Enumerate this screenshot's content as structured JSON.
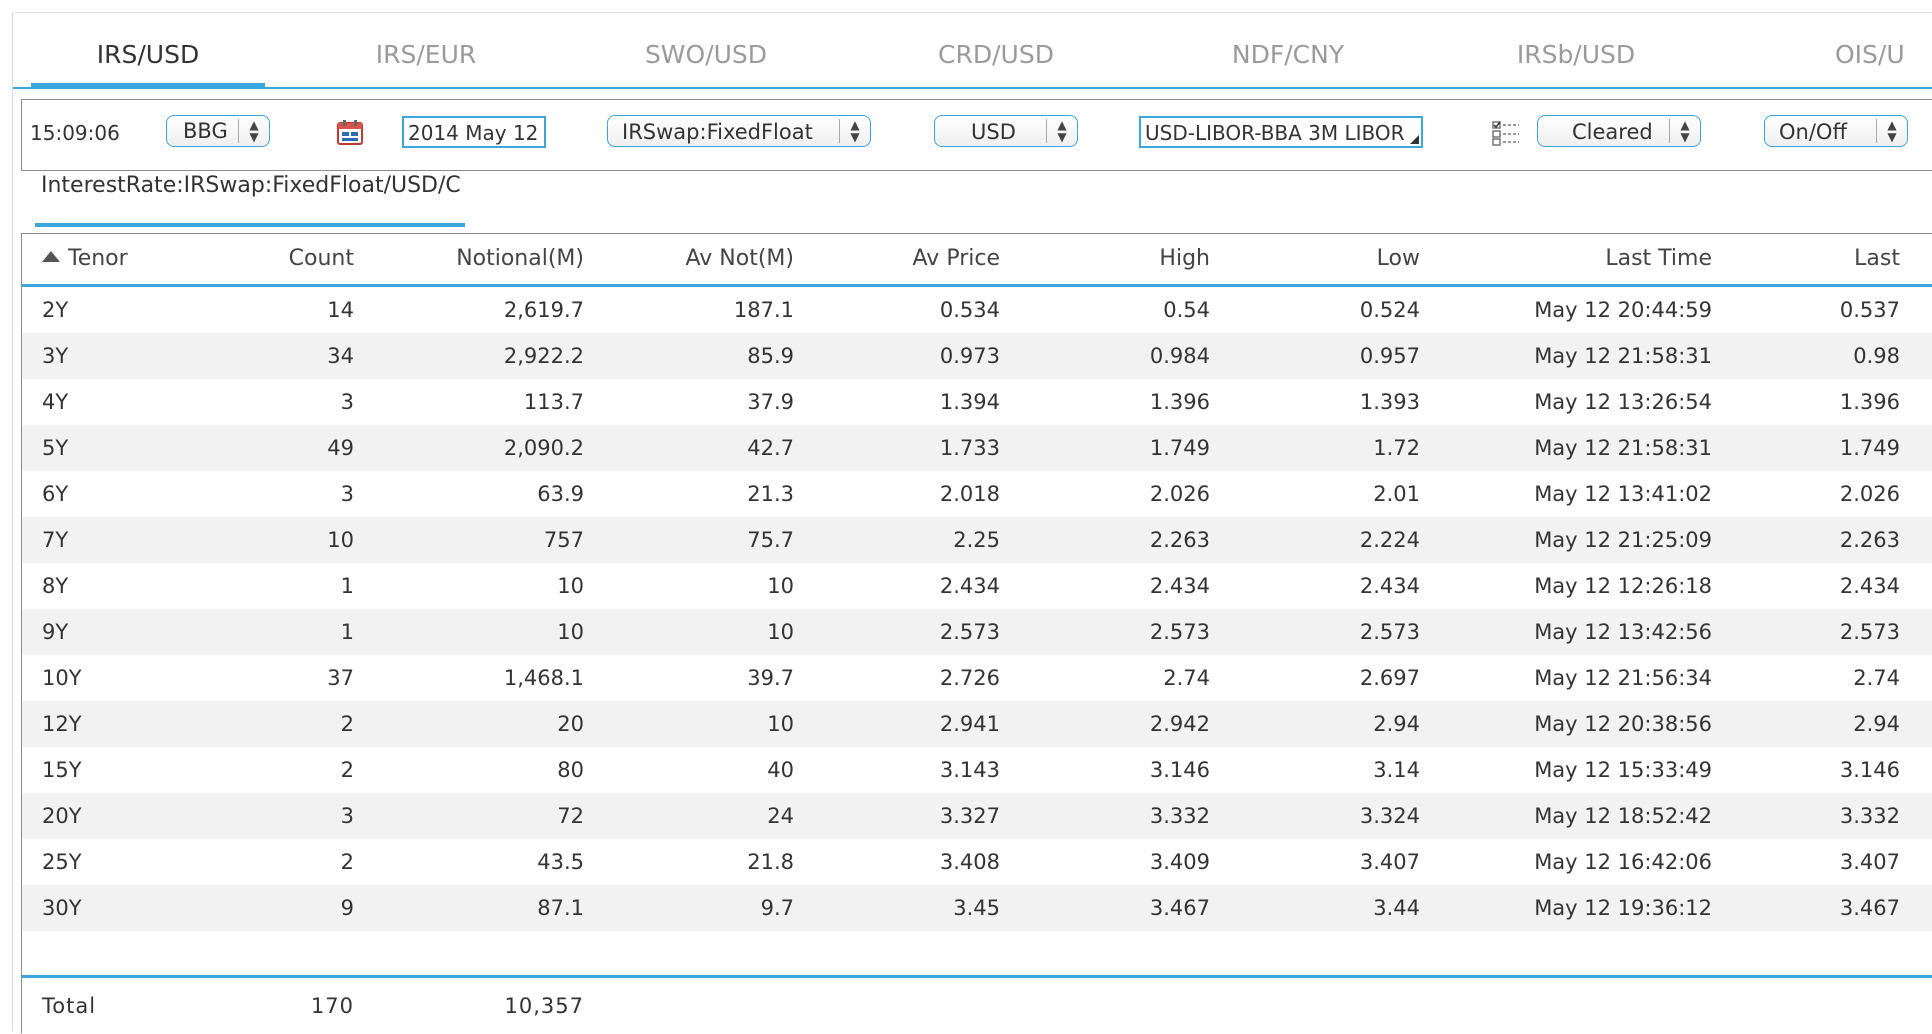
{
  "tabs": [
    {
      "label": "IRS/USD",
      "active": true
    },
    {
      "label": "IRS/EUR",
      "active": false
    },
    {
      "label": "SWO/USD",
      "active": false
    },
    {
      "label": "CRD/USD",
      "active": false
    },
    {
      "label": "NDF/CNY",
      "active": false
    },
    {
      "label": "IRSb/USD",
      "active": false
    },
    {
      "label": "OIS/U",
      "active": false
    }
  ],
  "toolbar": {
    "time": "15:09:06",
    "source": "BBG",
    "date": "2014 May 12",
    "product": "IRSwap:FixedFloat",
    "currency": "USD",
    "index": "USD-LIBOR-BBA 3M LIBOR",
    "clearing": "Cleared",
    "toggle": "On/Off"
  },
  "path_tab": "InterestRate:IRSwap:FixedFloat/USD/C",
  "table": {
    "columns": [
      "Tenor",
      "Count",
      "Notional(M)",
      "Av Not(M)",
      "Av Price",
      "High",
      "Low",
      "Last Time",
      "Last"
    ],
    "sort_column": "Tenor",
    "rows": [
      [
        "2Y",
        "14",
        "2,619.7",
        "187.1",
        "0.534",
        "0.54",
        "0.524",
        "May 12 20:44:59",
        "0.537"
      ],
      [
        "3Y",
        "34",
        "2,922.2",
        "85.9",
        "0.973",
        "0.984",
        "0.957",
        "May 12 21:58:31",
        "0.98"
      ],
      [
        "4Y",
        "3",
        "113.7",
        "37.9",
        "1.394",
        "1.396",
        "1.393",
        "May 12 13:26:54",
        "1.396"
      ],
      [
        "5Y",
        "49",
        "2,090.2",
        "42.7",
        "1.733",
        "1.749",
        "1.72",
        "May 12 21:58:31",
        "1.749"
      ],
      [
        "6Y",
        "3",
        "63.9",
        "21.3",
        "2.018",
        "2.026",
        "2.01",
        "May 12 13:41:02",
        "2.026"
      ],
      [
        "7Y",
        "10",
        "757",
        "75.7",
        "2.25",
        "2.263",
        "2.224",
        "May 12 21:25:09",
        "2.263"
      ],
      [
        "8Y",
        "1",
        "10",
        "10",
        "2.434",
        "2.434",
        "2.434",
        "May 12 12:26:18",
        "2.434"
      ],
      [
        "9Y",
        "1",
        "10",
        "10",
        "2.573",
        "2.573",
        "2.573",
        "May 12 13:42:56",
        "2.573"
      ],
      [
        "10Y",
        "37",
        "1,468.1",
        "39.7",
        "2.726",
        "2.74",
        "2.697",
        "May 12 21:56:34",
        "2.74"
      ],
      [
        "12Y",
        "2",
        "20",
        "10",
        "2.941",
        "2.942",
        "2.94",
        "May 12 20:38:56",
        "2.94"
      ],
      [
        "15Y",
        "2",
        "80",
        "40",
        "3.143",
        "3.146",
        "3.14",
        "May 12 15:33:49",
        "3.146"
      ],
      [
        "20Y",
        "3",
        "72",
        "24",
        "3.327",
        "3.332",
        "3.324",
        "May 12 18:52:42",
        "3.332"
      ],
      [
        "25Y",
        "2",
        "43.5",
        "21.8",
        "3.408",
        "3.409",
        "3.407",
        "May 12 16:42:06",
        "3.407"
      ],
      [
        "30Y",
        "9",
        "87.1",
        "9.7",
        "3.45",
        "3.467",
        "3.44",
        "May 12 19:36:12",
        "3.467"
      ]
    ],
    "footer": {
      "label": "Total",
      "count": "170",
      "notional": "10,357"
    }
  },
  "colors": {
    "accent": "#3aa6dd",
    "row_alt": "#f2f2f2",
    "inactive_tab": "#9a9a9a"
  }
}
